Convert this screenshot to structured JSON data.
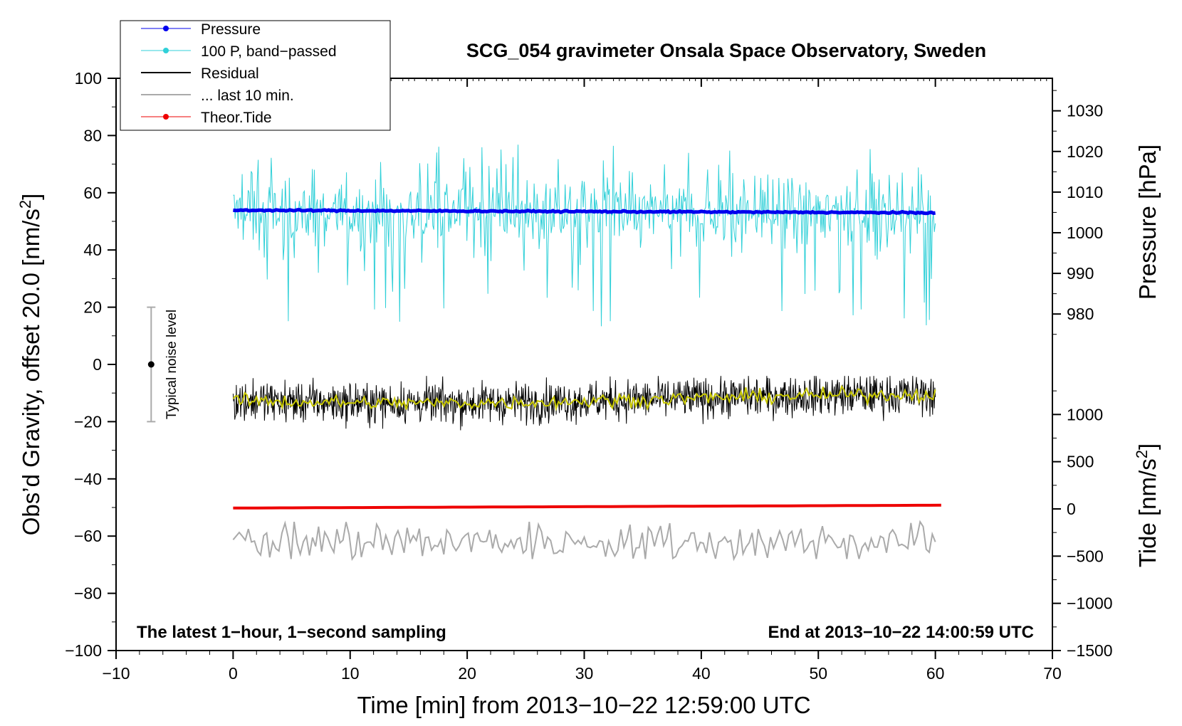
{
  "chart_data": {
    "type": "line",
    "title": "SCG_054 gravimeter Onsala Space Observatory, Sweden",
    "xlabel": "Time [min] from 2013−10−22 12:59:00 UTC",
    "ylabel_left": "Obs’d Gravity, offset 20.0 [nm/s",
    "ylabel_left_sup": "2",
    "ylabel_left_end": "]",
    "ylabel_right_pressure": "Pressure [hPa]",
    "ylabel_right_tide": "Tide [nm/s",
    "ylabel_right_tide_sup": "2",
    "ylabel_right_tide_end": "]",
    "xlim": [
      -10,
      70
    ],
    "ylim": [
      -100,
      100
    ],
    "pressure_axis_range": [
      972.5,
      1038.0
    ],
    "tide_axis_range": [
      -1500,
      1500
    ],
    "x_ticks": [
      "−10",
      "0",
      "10",
      "20",
      "30",
      "40",
      "50",
      "60",
      "70"
    ],
    "y_ticks": [
      "100",
      "80",
      "60",
      "40",
      "20",
      "0",
      "−20",
      "−40",
      "−60",
      "−80",
      "−100"
    ],
    "pressure_ticks": [
      "1030",
      "1020",
      "1010",
      "1000",
      "990",
      "980"
    ],
    "tide_ticks": [
      "1000",
      "500",
      "0",
      "−500",
      "−1000",
      "−1500"
    ],
    "annotation_left": "The latest 1−hour, 1−second sampling",
    "annotation_right": "End at 2013−10−22 14:00:59 UTC",
    "noise_label": "Typical noise level",
    "noise_bar": {
      "x": -7,
      "center": 0,
      "low": -20,
      "high": 20
    },
    "grid": false,
    "legend_position": "top-left",
    "legend": [
      {
        "label": "Pressure",
        "color": "#0000ee",
        "style": "line-dot"
      },
      {
        "label": "100 P, band−passed",
        "color": "#30d0d8",
        "style": "line-dot"
      },
      {
        "label": "Residual",
        "color": "#000000",
        "style": "line"
      },
      {
        "label": "... last 10 min.",
        "color": "#aaaaaa",
        "style": "line"
      },
      {
        "label": "Theor.Tide",
        "color": "#ee0000",
        "style": "line-dot"
      }
    ],
    "series": [
      {
        "name": "Pressure",
        "color": "#0000ee",
        "x_range": [
          0,
          60
        ],
        "start": 53.9,
        "end": 53.0,
        "noise": 0.4,
        "unit": "left-axis"
      },
      {
        "name": "100 P, band−passed",
        "color": "#30d0d8",
        "x_range": [
          0,
          60
        ],
        "center": 53.0,
        "noise": 6,
        "min": 11,
        "max": 80
      },
      {
        "name": "Residual",
        "color": "#000000",
        "x_range": [
          0,
          60
        ],
        "center": -12,
        "noise": 3.5,
        "min": -23,
        "max": -4
      },
      {
        "name": "Residual (smoothed)",
        "color": "#c8c800",
        "x_range": [
          0,
          60
        ],
        "center": -12,
        "noise": 1.2
      },
      {
        "name": "... last 10 min.",
        "color": "#aaaaaa",
        "x_range": [
          0,
          60
        ],
        "center": -62,
        "noise": 3,
        "min": -68,
        "max": -55
      },
      {
        "name": "Theor.Tide",
        "color": "#ee0000",
        "x_range": [
          0,
          60.5
        ],
        "start": -50.2,
        "end": -49.2
      }
    ]
  }
}
